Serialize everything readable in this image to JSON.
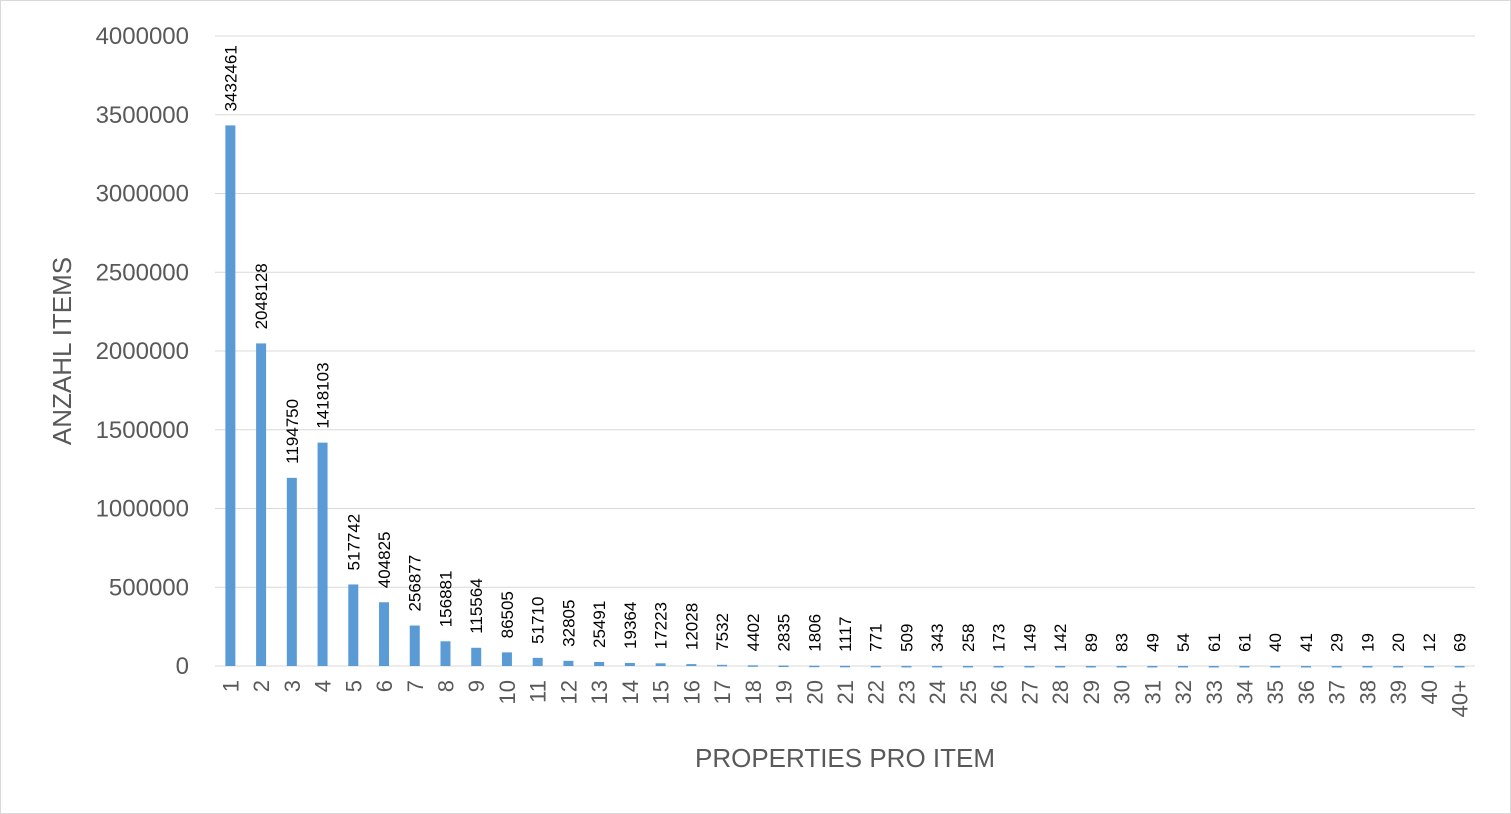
{
  "chart_data": {
    "type": "bar",
    "title": "",
    "xlabel": "PROPERTIES PRO ITEM",
    "ylabel": "ANZAHL ITEMS",
    "ylim": [
      0,
      4000000
    ],
    "yticks": [
      "0",
      "500000",
      "1000000",
      "1500000",
      "2000000",
      "2500000",
      "3000000",
      "3500000",
      "4000000"
    ],
    "grid": true,
    "legend": "none",
    "bar_color": "#5b9bd5",
    "categories": [
      "1",
      "2",
      "3",
      "4",
      "5",
      "6",
      "7",
      "8",
      "9",
      "10",
      "11",
      "12",
      "13",
      "14",
      "15",
      "16",
      "17",
      "18",
      "19",
      "20",
      "21",
      "22",
      "23",
      "24",
      "25",
      "26",
      "27",
      "28",
      "29",
      "30",
      "31",
      "32",
      "33",
      "34",
      "35",
      "36",
      "37",
      "38",
      "39",
      "40",
      "40+"
    ],
    "values": [
      3432461,
      2048128,
      1194750,
      1418103,
      517742,
      404825,
      256877,
      156881,
      115564,
      86505,
      51710,
      32805,
      25491,
      19364,
      17223,
      12028,
      7532,
      4402,
      2835,
      1806,
      1117,
      771,
      509,
      343,
      258,
      173,
      149,
      142,
      89,
      83,
      49,
      54,
      61,
      61,
      40,
      41,
      29,
      19,
      20,
      12,
      69
    ],
    "data_labels": [
      "3432461",
      "2048128",
      "1194750",
      "1418103",
      "517742",
      "404825",
      "256877",
      "156881",
      "115564",
      "86505",
      "51710",
      "32805",
      "25491",
      "19364",
      "17223",
      "12028",
      "7532",
      "4402",
      "2835",
      "1806",
      "1117",
      "771",
      "509",
      "343",
      "258",
      "173",
      "149",
      "142",
      "89",
      "83",
      "49",
      "54",
      "61",
      "61",
      "40",
      "41",
      "29",
      "19",
      "20",
      "12",
      "69"
    ]
  }
}
